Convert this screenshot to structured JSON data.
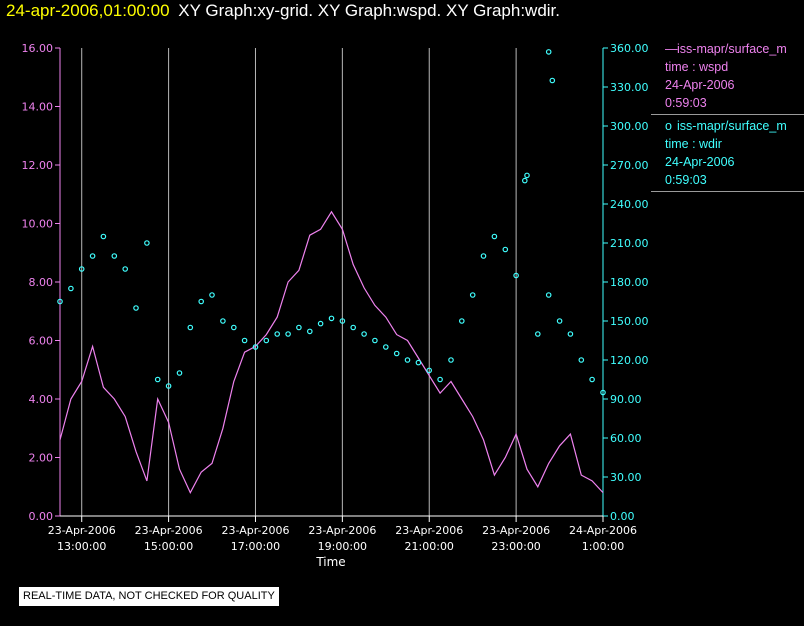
{
  "header": {
    "timestamp": "24-apr-2006,01:00:00",
    "graphs": "XY Graph:xy-grid.  XY Graph:wspd.  XY Graph:wdir."
  },
  "legend": [
    {
      "marker": "—",
      "name": "iss-mapr/surface_m",
      "var": "time : wspd",
      "date": "24-Apr-2006",
      "time": "0:59:03",
      "color": "#ee82ee"
    },
    {
      "marker": "o",
      "name": "iss-mapr/surface_m",
      "var": "time : wdir",
      "date": "24-Apr-2006",
      "time": "0:59:03",
      "color": "#40ffff"
    }
  ],
  "footer": {
    "quality_note": "REAL-TIME DATA, NOT CHECKED FOR QUALITY"
  },
  "chart_data": {
    "type": "line",
    "xlabel": "Time",
    "ylabel": "",
    "x_range": [
      "2006-04-23 12:30:00",
      "2006-04-24 01:00:00"
    ],
    "left_axis": {
      "ylim": [
        0,
        16
      ],
      "ticks": [
        "0.00",
        "2.00",
        "4.00",
        "6.00",
        "8.00",
        "10.00",
        "12.00",
        "14.00",
        "16.00"
      ],
      "color": "#ee82ee"
    },
    "right_axis": {
      "ylim": [
        0,
        360
      ],
      "ticks": [
        "0.00",
        "30.00",
        "60.00",
        "90.00",
        "120.00",
        "150.00",
        "180.00",
        "210.00",
        "240.00",
        "270.00",
        "300.00",
        "330.00",
        "360.00"
      ],
      "color": "#40ffff"
    },
    "x_ticks": [
      {
        "t": "13:00",
        "date": "23-Apr-2006",
        "time": "13:00:00"
      },
      {
        "t": "15:00",
        "date": "23-Apr-2006",
        "time": "15:00:00"
      },
      {
        "t": "17:00",
        "date": "23-Apr-2006",
        "time": "17:00:00"
      },
      {
        "t": "19:00",
        "date": "23-Apr-2006",
        "time": "19:00:00"
      },
      {
        "t": "21:00",
        "date": "23-Apr-2006",
        "time": "21:00:00"
      },
      {
        "t": "23:00",
        "date": "23-Apr-2006",
        "time": "23:00:00"
      },
      {
        "t": "01:00",
        "date": "24-Apr-2006",
        "time": "1:00:00"
      }
    ],
    "grid": true,
    "series": [
      {
        "name": "iss-mapr/surface_m time : wspd",
        "axis": "left",
        "style": "line",
        "color": "#ee82ee",
        "points": [
          [
            "12:30",
            2.6
          ],
          [
            "12:45",
            4.0
          ],
          [
            "13:00",
            4.6
          ],
          [
            "13:15",
            5.8
          ],
          [
            "13:30",
            4.4
          ],
          [
            "13:45",
            4.0
          ],
          [
            "14:00",
            3.4
          ],
          [
            "14:15",
            2.2
          ],
          [
            "14:30",
            1.2
          ],
          [
            "14:45",
            4.0
          ],
          [
            "15:00",
            3.2
          ],
          [
            "15:15",
            1.6
          ],
          [
            "15:30",
            0.8
          ],
          [
            "15:45",
            1.5
          ],
          [
            "16:00",
            1.8
          ],
          [
            "16:15",
            3.0
          ],
          [
            "16:30",
            4.6
          ],
          [
            "16:45",
            5.6
          ],
          [
            "17:00",
            5.8
          ],
          [
            "17:15",
            6.2
          ],
          [
            "17:30",
            6.8
          ],
          [
            "17:45",
            8.0
          ],
          [
            "18:00",
            8.4
          ],
          [
            "18:15",
            9.6
          ],
          [
            "18:30",
            9.8
          ],
          [
            "18:45",
            10.4
          ],
          [
            "19:00",
            9.8
          ],
          [
            "19:15",
            8.6
          ],
          [
            "19:30",
            7.8
          ],
          [
            "19:45",
            7.2
          ],
          [
            "20:00",
            6.8
          ],
          [
            "20:15",
            6.2
          ],
          [
            "20:30",
            6.0
          ],
          [
            "20:45",
            5.4
          ],
          [
            "21:00",
            4.8
          ],
          [
            "21:15",
            4.2
          ],
          [
            "21:30",
            4.6
          ],
          [
            "21:45",
            4.0
          ],
          [
            "22:00",
            3.4
          ],
          [
            "22:15",
            2.6
          ],
          [
            "22:30",
            1.4
          ],
          [
            "22:45",
            2.0
          ],
          [
            "23:00",
            2.8
          ],
          [
            "23:15",
            1.6
          ],
          [
            "23:30",
            1.0
          ],
          [
            "23:45",
            1.8
          ],
          [
            "00:00",
            2.4
          ],
          [
            "00:15",
            2.8
          ],
          [
            "00:30",
            1.4
          ],
          [
            "00:45",
            1.2
          ],
          [
            "01:00",
            0.8
          ]
        ]
      },
      {
        "name": "iss-mapr/surface_m time : wdir",
        "axis": "right",
        "style": "scatter",
        "color": "#40ffff",
        "points": [
          [
            "12:30",
            165
          ],
          [
            "12:45",
            175
          ],
          [
            "13:00",
            190
          ],
          [
            "13:15",
            200
          ],
          [
            "13:30",
            215
          ],
          [
            "13:45",
            200
          ],
          [
            "14:00",
            190
          ],
          [
            "14:15",
            160
          ],
          [
            "14:30",
            210
          ],
          [
            "14:45",
            105
          ],
          [
            "15:00",
            100
          ],
          [
            "15:15",
            110
          ],
          [
            "15:30",
            145
          ],
          [
            "15:45",
            165
          ],
          [
            "16:00",
            170
          ],
          [
            "16:15",
            150
          ],
          [
            "16:30",
            145
          ],
          [
            "16:45",
            135
          ],
          [
            "17:00",
            130
          ],
          [
            "17:15",
            135
          ],
          [
            "17:30",
            140
          ],
          [
            "17:45",
            140
          ],
          [
            "18:00",
            145
          ],
          [
            "18:15",
            142
          ],
          [
            "18:30",
            148
          ],
          [
            "18:45",
            152
          ],
          [
            "19:00",
            150
          ],
          [
            "19:15",
            145
          ],
          [
            "19:30",
            140
          ],
          [
            "19:45",
            135
          ],
          [
            "20:00",
            130
          ],
          [
            "20:15",
            125
          ],
          [
            "20:30",
            120
          ],
          [
            "20:45",
            118
          ],
          [
            "21:00",
            112
          ],
          [
            "21:15",
            105
          ],
          [
            "21:30",
            120
          ],
          [
            "21:45",
            150
          ],
          [
            "22:00",
            170
          ],
          [
            "22:15",
            200
          ],
          [
            "22:30",
            215
          ],
          [
            "22:45",
            205
          ],
          [
            "23:00",
            185
          ],
          [
            "23:15",
            262
          ],
          [
            "23:30",
            140
          ],
          [
            "23:45",
            170
          ],
          [
            "00:00",
            150
          ],
          [
            "00:15",
            140
          ],
          [
            "00:30",
            120
          ],
          [
            "00:45",
            105
          ],
          [
            "01:00",
            95
          ],
          [
            "23:12",
            258
          ],
          [
            "23:45",
            357
          ],
          [
            "23:50",
            335
          ]
        ]
      }
    ]
  }
}
